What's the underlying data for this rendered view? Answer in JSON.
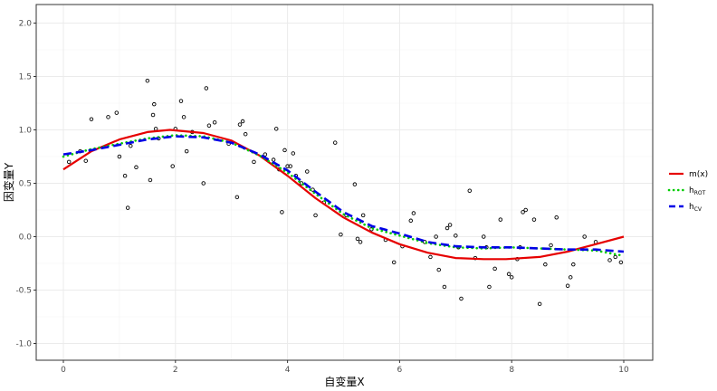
{
  "chart_data": {
    "type": "scatter",
    "xlabel": "自变量X",
    "ylabel": "因变量Y",
    "xlim": [
      -0.5,
      10.5
    ],
    "ylim": [
      -1.15,
      2.1
    ],
    "xticks": [
      0,
      2,
      4,
      6,
      8,
      10
    ],
    "yticks": [
      -1.0,
      -0.5,
      0.0,
      0.5,
      1.0,
      1.5,
      2.0
    ],
    "xtick_labels": [
      "0",
      "2",
      "4",
      "6",
      "8",
      "10"
    ],
    "ytick_labels": [
      "-1.0",
      "-0.5",
      "0.0",
      "0.5",
      "1.0",
      "1.5",
      "2.0"
    ],
    "grid": true,
    "legend_position": "right",
    "points": {
      "x": [
        0.1,
        0.3,
        0.4,
        0.5,
        0.8,
        0.95,
        1.0,
        1.1,
        1.15,
        1.2,
        1.3,
        1.5,
        1.55,
        1.6,
        1.62,
        1.65,
        1.7,
        1.95,
        2.0,
        2.1,
        2.15,
        2.2,
        2.3,
        2.5,
        2.55,
        2.6,
        2.7,
        2.95,
        3.1,
        3.15,
        3.2,
        3.25,
        3.4,
        3.6,
        3.75,
        3.8,
        3.85,
        3.9,
        3.95,
        4.0,
        4.05,
        4.1,
        4.15,
        4.25,
        4.35,
        4.45,
        4.5,
        4.65,
        4.85,
        4.95,
        5.05,
        5.2,
        5.25,
        5.3,
        5.35,
        5.5,
        5.75,
        5.9,
        6.05,
        6.2,
        6.25,
        6.45,
        6.55,
        6.65,
        6.7,
        6.8,
        6.85,
        6.9,
        7.0,
        7.05,
        7.1,
        7.25,
        7.35,
        7.5,
        7.55,
        7.6,
        7.7,
        7.8,
        7.95,
        8.0,
        8.1,
        8.15,
        8.2,
        8.25,
        8.4,
        8.5,
        8.6,
        8.7,
        8.8,
        9.0,
        9.05,
        9.1,
        9.3,
        9.5,
        9.75,
        9.85,
        9.95
      ],
      "y": [
        0.7,
        0.8,
        0.71,
        1.1,
        1.12,
        1.16,
        0.75,
        0.57,
        0.27,
        0.85,
        0.65,
        1.46,
        0.53,
        1.14,
        1.24,
        1.01,
        0.92,
        0.66,
        1.01,
        1.27,
        1.12,
        0.8,
        0.98,
        0.5,
        1.39,
        1.04,
        1.07,
        0.87,
        0.37,
        1.05,
        1.08,
        0.96,
        0.7,
        0.77,
        0.72,
        1.01,
        0.63,
        0.23,
        0.81,
        0.66,
        0.66,
        0.78,
        0.57,
        0.5,
        0.61,
        0.44,
        0.2,
        0.32,
        0.88,
        0.02,
        0.2,
        0.49,
        -0.02,
        -0.05,
        0.2,
        0.07,
        -0.03,
        -0.24,
        -0.09,
        0.15,
        0.22,
        -0.05,
        -0.19,
        0.0,
        -0.31,
        -0.47,
        0.08,
        0.11,
        0.01,
        -0.1,
        -0.58,
        0.43,
        -0.2,
        0.0,
        -0.1,
        -0.47,
        -0.3,
        0.16,
        -0.35,
        -0.38,
        -0.21,
        -0.1,
        0.23,
        0.25,
        0.16,
        -0.63,
        -0.26,
        -0.08,
        0.18,
        -0.46,
        -0.38,
        -0.26,
        0.0,
        -0.05,
        -0.22,
        -0.19,
        -0.24
      ]
    },
    "series": [
      {
        "name": "m(x)",
        "color": "#e60000",
        "style": "solid",
        "x": [
          0,
          0.5,
          1,
          1.5,
          1.9,
          2.5,
          3,
          3.5,
          4,
          4.5,
          5,
          5.5,
          6,
          6.5,
          7,
          7.5,
          7.9,
          8.5,
          9,
          9.5,
          10
        ],
        "y": [
          0.63,
          0.8,
          0.91,
          0.98,
          1.0,
          0.97,
          0.9,
          0.76,
          0.57,
          0.36,
          0.18,
          0.04,
          -0.07,
          -0.15,
          -0.2,
          -0.21,
          -0.21,
          -0.19,
          -0.14,
          -0.07,
          0.0
        ]
      },
      {
        "name": "h",
        "subscript": "ROT",
        "color": "#00cc00",
        "style": "dotted",
        "x": [
          0,
          0.5,
          1,
          1.5,
          2,
          2.5,
          3,
          3.5,
          4,
          4.5,
          5,
          5.5,
          6,
          6.5,
          7,
          7.5,
          8,
          8.5,
          9,
          9.5,
          10
        ],
        "y": [
          0.75,
          0.82,
          0.87,
          0.92,
          0.95,
          0.94,
          0.88,
          0.76,
          0.6,
          0.4,
          0.21,
          0.08,
          0.01,
          -0.06,
          -0.1,
          -0.11,
          -0.1,
          -0.11,
          -0.12,
          -0.13,
          -0.18
        ]
      },
      {
        "name": "h",
        "subscript": "CV",
        "color": "#0000e6",
        "style": "dashed",
        "x": [
          0,
          0.5,
          1,
          1.5,
          2,
          2.5,
          3,
          3.5,
          4,
          4.5,
          5,
          5.5,
          6,
          6.5,
          7,
          7.5,
          8,
          8.5,
          9,
          9.5,
          10
        ],
        "y": [
          0.77,
          0.81,
          0.86,
          0.91,
          0.94,
          0.93,
          0.88,
          0.77,
          0.62,
          0.42,
          0.23,
          0.1,
          0.03,
          -0.05,
          -0.09,
          -0.1,
          -0.1,
          -0.11,
          -0.12,
          -0.12,
          -0.14
        ]
      }
    ]
  }
}
